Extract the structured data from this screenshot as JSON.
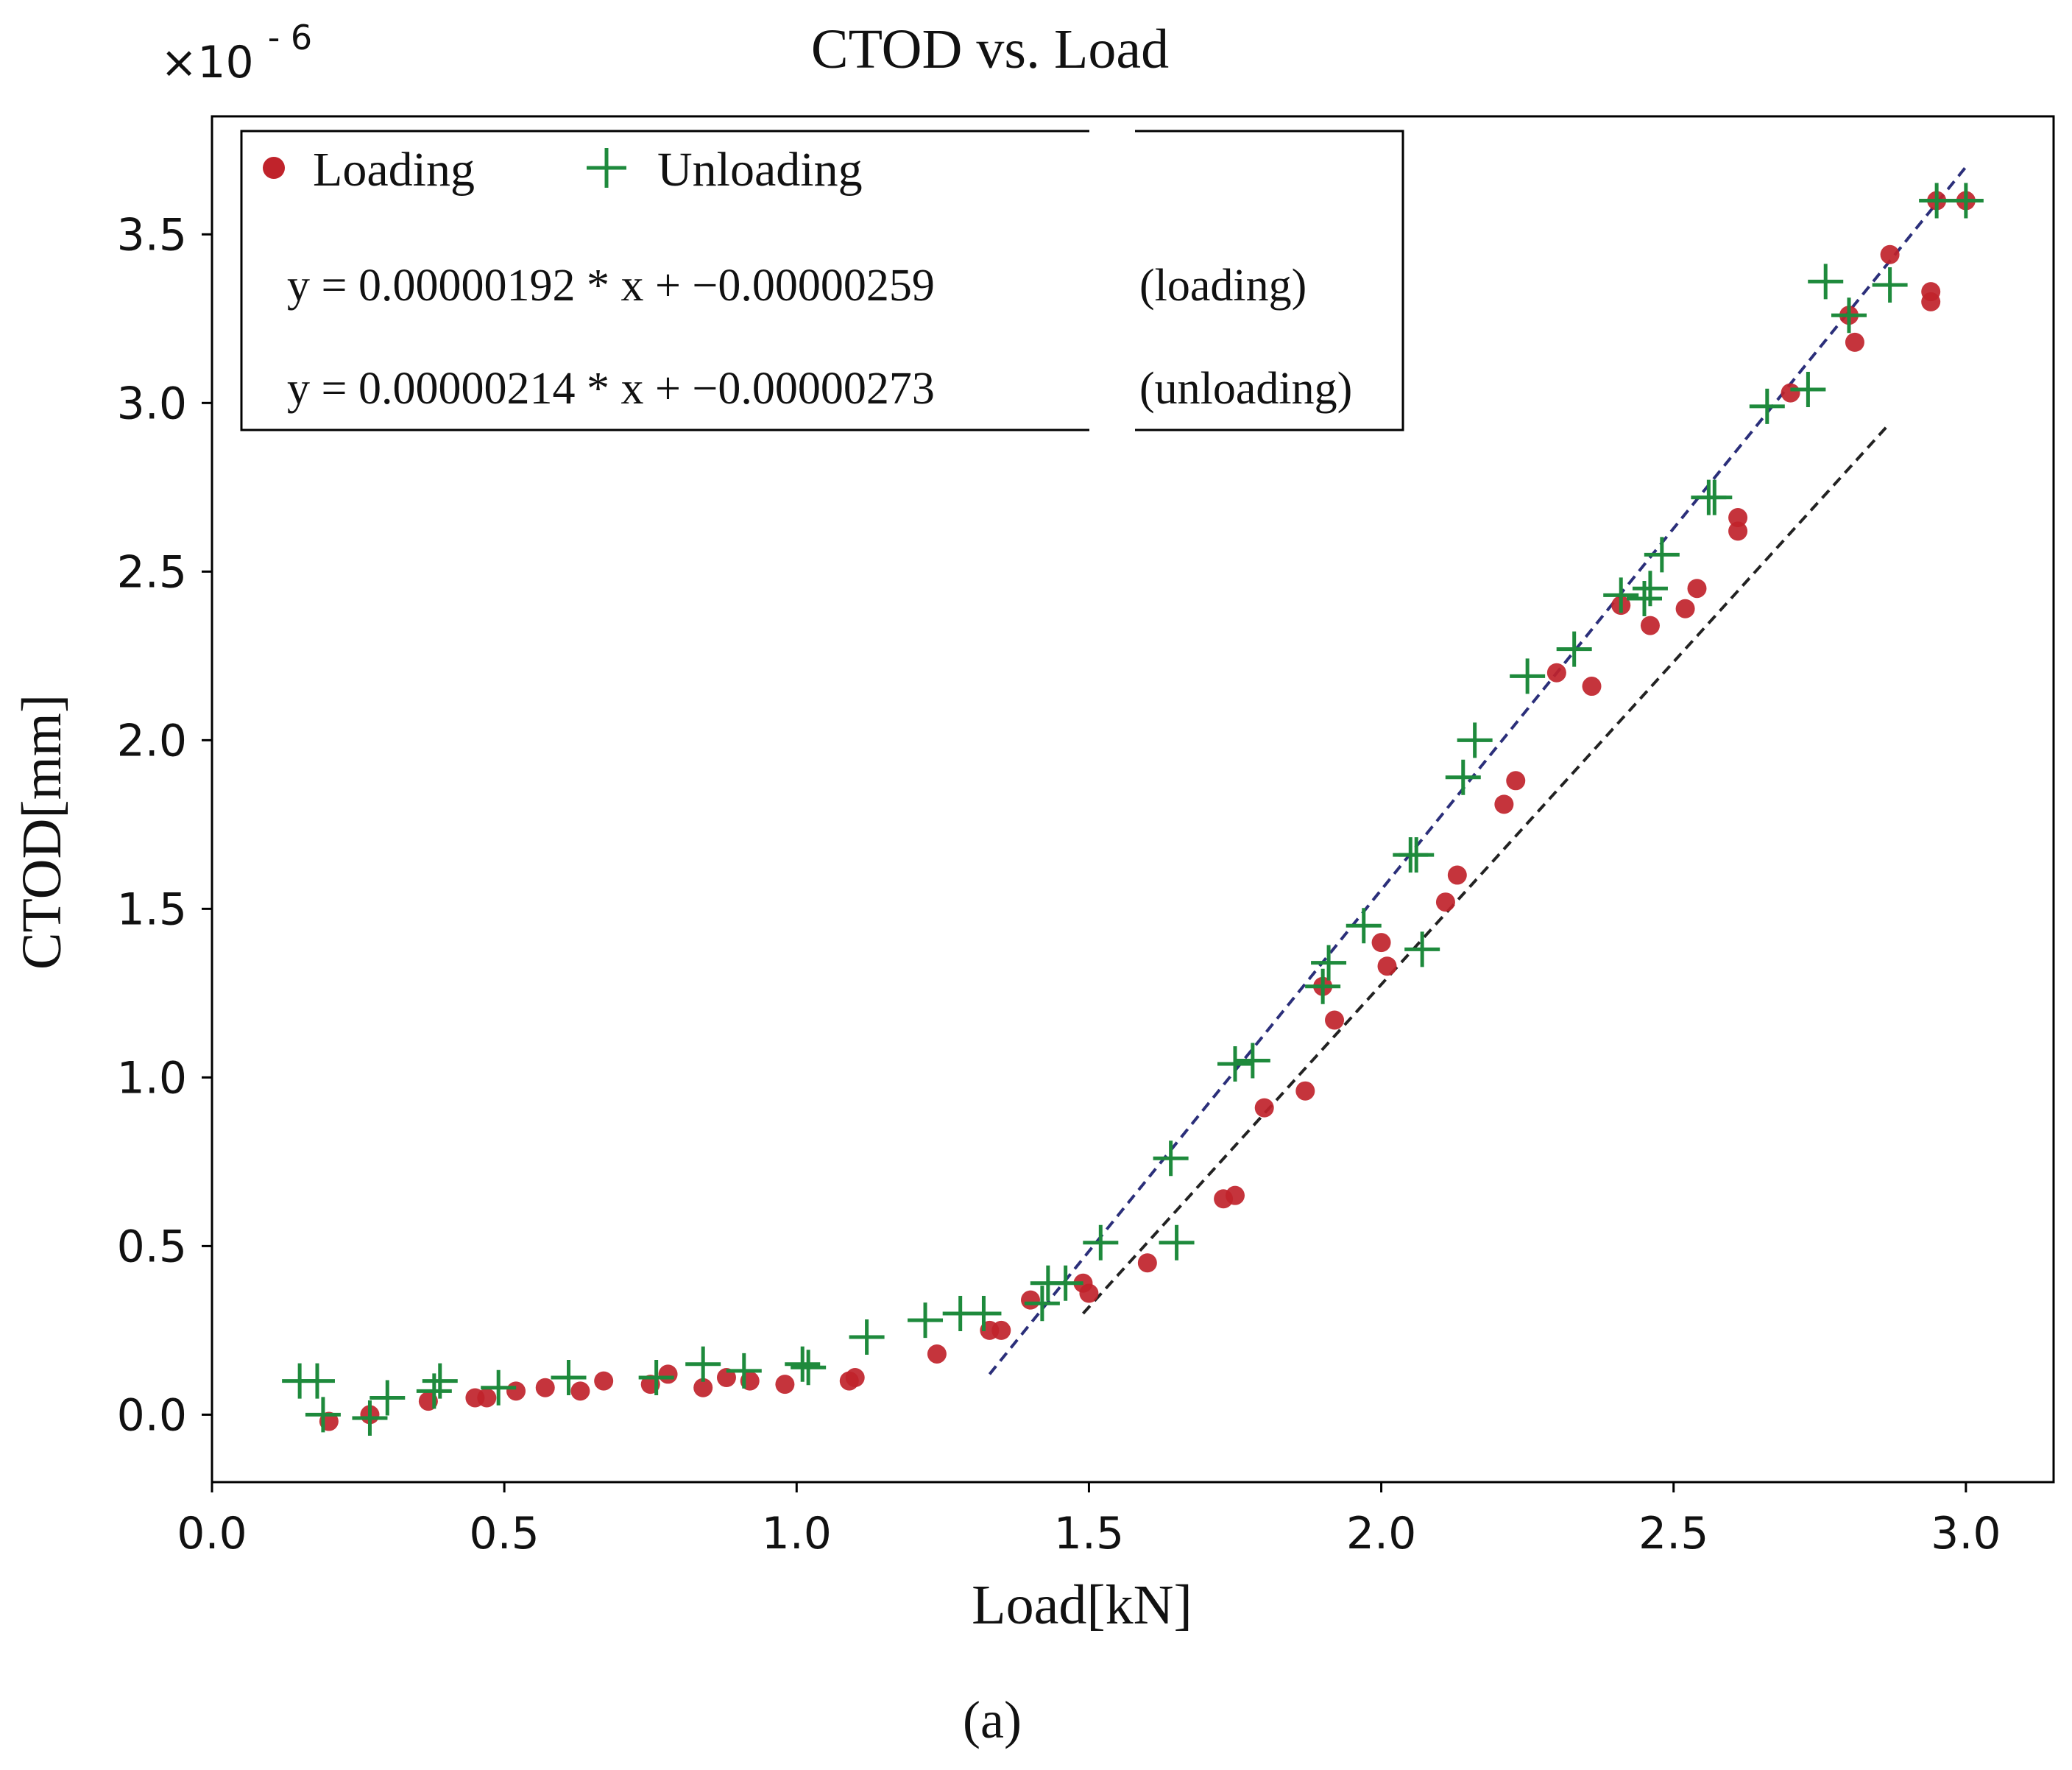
{
  "chart_data": {
    "type": "scatter",
    "title": "CTOD vs. Load",
    "xlabel": "Load[kN]",
    "ylabel": "CTOD[mm]",
    "y_exponent": "×10",
    "y_exponent_power": "- 6",
    "caption": "(a)",
    "xlim": [
      0.0,
      3.15
    ],
    "ylim": [
      -0.2,
      3.85
    ],
    "x_ticks": [
      {
        "value": 0.0,
        "label": "0.0"
      },
      {
        "value": 0.5,
        "label": "0.5"
      },
      {
        "value": 1.0,
        "label": "1.0"
      },
      {
        "value": 1.5,
        "label": "1.5"
      },
      {
        "value": 2.0,
        "label": "2.0"
      },
      {
        "value": 2.5,
        "label": "2.5"
      },
      {
        "value": 3.0,
        "label": "3.0"
      }
    ],
    "y_ticks": [
      {
        "value": 0.0,
        "label": "0.0"
      },
      {
        "value": 0.5,
        "label": "0.5"
      },
      {
        "value": 1.0,
        "label": "1.0"
      },
      {
        "value": 1.5,
        "label": "1.5"
      },
      {
        "value": 2.0,
        "label": "2.0"
      },
      {
        "value": 2.5,
        "label": "2.5"
      },
      {
        "value": 3.0,
        "label": "3.0"
      },
      {
        "value": 3.5,
        "label": "3.5"
      }
    ],
    "legend": {
      "placement": "top-left",
      "entries": [
        {
          "name": "Loading",
          "marker": "circle",
          "color": "#c0232b"
        },
        {
          "name": "Unloading",
          "marker": "plus",
          "color": "#1e8a3c"
        }
      ],
      "equations": [
        {
          "text": "y = 0.00000192 * x  +  −0.00000259",
          "tag": "(loading)"
        },
        {
          "text": "y = 0.00000214 * x +  −0.00000273",
          "tag": "(unloading)"
        }
      ]
    },
    "fit_lines": [
      {
        "name": "unloading-fit",
        "color": "#2b2f7a",
        "x": [
          1.33,
          3.0
        ],
        "y": [
          0.12,
          3.7
        ]
      },
      {
        "name": "loading-fit",
        "color": "#222222",
        "x": [
          1.49,
          2.87
        ],
        "y": [
          0.3,
          2.94
        ]
      }
    ],
    "series": [
      {
        "name": "Loading",
        "marker": "circle",
        "color": "#c0232b",
        "points": [
          [
            0.2,
            -0.02
          ],
          [
            0.27,
            0.0
          ],
          [
            0.37,
            0.04
          ],
          [
            0.45,
            0.05
          ],
          [
            0.47,
            0.05
          ],
          [
            0.52,
            0.07
          ],
          [
            0.57,
            0.08
          ],
          [
            0.63,
            0.07
          ],
          [
            0.67,
            0.1
          ],
          [
            0.75,
            0.09
          ],
          [
            0.78,
            0.12
          ],
          [
            0.84,
            0.08
          ],
          [
            0.88,
            0.11
          ],
          [
            0.92,
            0.1
          ],
          [
            0.98,
            0.09
          ],
          [
            1.09,
            0.1
          ],
          [
            1.1,
            0.11
          ],
          [
            1.24,
            0.18
          ],
          [
            1.33,
            0.25
          ],
          [
            1.35,
            0.25
          ],
          [
            1.4,
            0.34
          ],
          [
            1.49,
            0.39
          ],
          [
            1.5,
            0.36
          ],
          [
            1.6,
            0.45
          ],
          [
            1.73,
            0.64
          ],
          [
            1.75,
            0.65
          ],
          [
            1.8,
            0.91
          ],
          [
            1.87,
            0.96
          ],
          [
            1.9,
            1.27
          ],
          [
            1.92,
            1.17
          ],
          [
            2.0,
            1.4
          ],
          [
            2.01,
            1.33
          ],
          [
            2.11,
            1.52
          ],
          [
            2.13,
            1.6
          ],
          [
            2.21,
            1.81
          ],
          [
            2.23,
            1.88
          ],
          [
            2.3,
            2.2
          ],
          [
            2.36,
            2.16
          ],
          [
            2.41,
            2.4
          ],
          [
            2.46,
            2.34
          ],
          [
            2.52,
            2.39
          ],
          [
            2.54,
            2.45
          ],
          [
            2.61,
            2.62
          ],
          [
            2.61,
            2.66
          ],
          [
            2.7,
            3.03
          ],
          [
            2.8,
            3.26
          ],
          [
            2.81,
            3.18
          ],
          [
            2.87,
            3.44
          ],
          [
            2.94,
            3.3
          ],
          [
            2.94,
            3.33
          ],
          [
            2.95,
            3.6
          ],
          [
            3.0,
            3.6
          ]
        ]
      },
      {
        "name": "Unloading",
        "marker": "plus",
        "color": "#1e8a3c",
        "points": [
          [
            0.15,
            0.1
          ],
          [
            0.18,
            0.1
          ],
          [
            0.19,
            0.0
          ],
          [
            0.27,
            -0.01
          ],
          [
            0.3,
            0.05
          ],
          [
            0.38,
            0.07
          ],
          [
            0.39,
            0.1
          ],
          [
            0.49,
            0.08
          ],
          [
            0.61,
            0.11
          ],
          [
            0.76,
            0.11
          ],
          [
            0.84,
            0.15
          ],
          [
            0.91,
            0.13
          ],
          [
            1.01,
            0.15
          ],
          [
            1.02,
            0.14
          ],
          [
            1.12,
            0.23
          ],
          [
            1.22,
            0.28
          ],
          [
            1.28,
            0.3
          ],
          [
            1.32,
            0.3
          ],
          [
            1.42,
            0.33
          ],
          [
            1.43,
            0.39
          ],
          [
            1.46,
            0.39
          ],
          [
            1.52,
            0.51
          ],
          [
            1.64,
            0.76
          ],
          [
            1.65,
            0.51
          ],
          [
            1.75,
            1.04
          ],
          [
            1.78,
            1.05
          ],
          [
            1.9,
            1.27
          ],
          [
            1.91,
            1.34
          ],
          [
            1.97,
            1.45
          ],
          [
            2.05,
            1.66
          ],
          [
            2.06,
            1.66
          ],
          [
            2.07,
            1.38
          ],
          [
            2.14,
            1.89
          ],
          [
            2.16,
            2.0
          ],
          [
            2.25,
            2.19
          ],
          [
            2.33,
            2.27
          ],
          [
            2.41,
            2.43
          ],
          [
            2.45,
            2.42
          ],
          [
            2.46,
            2.45
          ],
          [
            2.48,
            2.55
          ],
          [
            2.56,
            2.72
          ],
          [
            2.57,
            2.72
          ],
          [
            2.66,
            2.99
          ],
          [
            2.73,
            3.04
          ],
          [
            2.76,
            3.36
          ],
          [
            2.8,
            3.26
          ],
          [
            2.87,
            3.35
          ],
          [
            2.95,
            3.6
          ],
          [
            3.0,
            3.6
          ]
        ]
      }
    ]
  }
}
